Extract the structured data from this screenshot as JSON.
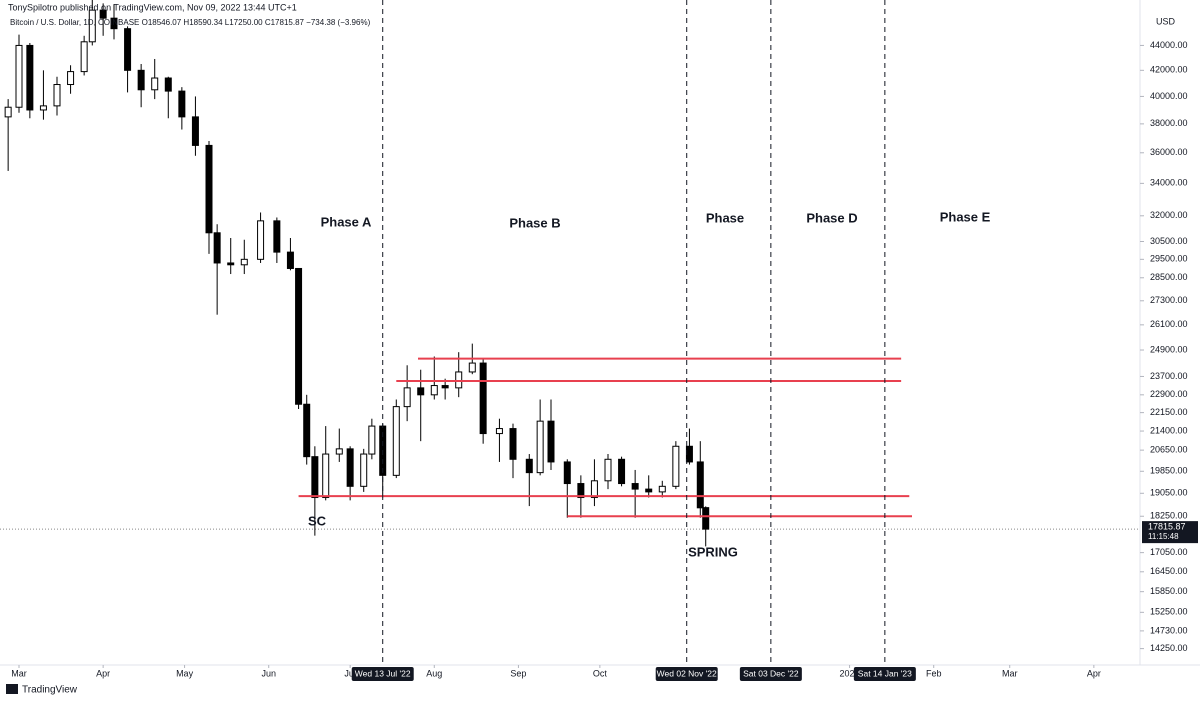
{
  "header": {
    "byline": "TonySpilotro published on TradingView.com, Nov 09, 2022 13:44 UTC+1",
    "legend": "Bitcoin / U.S. Dollar, 1D, COINBASE  O18546.07  H18590.34  L17250.00  C17815.87  −734.38 (−3.96%)",
    "brand": "TradingView"
  },
  "chart_data": {
    "type": "candlestick",
    "currency": "USD",
    "log_scale": true,
    "up_color": "#ffffff",
    "down_color": "#000000",
    "outline_color": "#000000",
    "x": [
      "2022-02-25",
      "2022-03-01",
      "2022-03-05",
      "2022-03-10",
      "2022-03-15",
      "2022-03-20",
      "2022-03-25",
      "2022-03-28",
      "2022-04-01",
      "2022-04-05",
      "2022-04-10",
      "2022-04-15",
      "2022-04-20",
      "2022-04-25",
      "2022-04-30",
      "2022-05-05",
      "2022-05-10",
      "2022-05-13",
      "2022-05-18",
      "2022-05-23",
      "2022-05-29",
      "2022-06-04",
      "2022-06-09",
      "2022-06-12",
      "2022-06-15",
      "2022-06-18",
      "2022-06-22",
      "2022-06-27",
      "2022-07-01",
      "2022-07-06",
      "2022-07-09",
      "2022-07-13",
      "2022-07-18",
      "2022-07-22",
      "2022-07-27",
      "2022-08-01",
      "2022-08-05",
      "2022-08-10",
      "2022-08-15",
      "2022-08-19",
      "2022-08-25",
      "2022-08-30",
      "2022-09-05",
      "2022-09-09",
      "2022-09-13",
      "2022-09-19",
      "2022-09-24",
      "2022-09-29",
      "2022-10-04",
      "2022-10-09",
      "2022-10-14",
      "2022-10-19",
      "2022-10-24",
      "2022-10-29",
      "2022-11-03",
      "2022-11-07",
      "2022-11-09"
    ],
    "open": [
      38500,
      39200,
      44000,
      39000,
      39300,
      40900,
      41900,
      44300,
      47000,
      46300,
      45400,
      42000,
      40500,
      41400,
      40400,
      38500,
      36500,
      31000,
      29300,
      29200,
      29500,
      31700,
      29900,
      29000,
      22500,
      20400,
      18900,
      20500,
      20700,
      19300,
      20500,
      21600,
      19700,
      22400,
      23200,
      22900,
      23300,
      23200,
      23900,
      24300,
      21300,
      21500,
      20300,
      19800,
      21800,
      20200,
      19400,
      18900,
      19500,
      20300,
      19400,
      19200,
      19100,
      19300,
      20800,
      20200,
      18546.07
    ],
    "high": [
      39800,
      44900,
      44200,
      42000,
      41500,
      42400,
      44800,
      48200,
      47600,
      47500,
      45600,
      42500,
      42900,
      41500,
      40700,
      40000,
      36800,
      31500,
      30700,
      30600,
      32200,
      31900,
      30700,
      29000,
      22900,
      20800,
      21600,
      21500,
      20800,
      20700,
      21900,
      21700,
      22700,
      24200,
      24000,
      24600,
      23600,
      24800,
      25200,
      24500,
      21900,
      21700,
      20500,
      22700,
      22700,
      20300,
      19700,
      20300,
      20500,
      20400,
      19900,
      19700,
      19500,
      21000,
      21500,
      21000,
      18590.34
    ],
    "low": [
      34800,
      38800,
      38400,
      38300,
      38600,
      40200,
      41600,
      44000,
      44800,
      44500,
      40300,
      39200,
      39800,
      38400,
      37600,
      35800,
      29800,
      26600,
      28700,
      28700,
      29300,
      29300,
      28900,
      22300,
      20100,
      17600,
      18800,
      20200,
      18800,
      19100,
      20300,
      18900,
      19600,
      21800,
      21000,
      22700,
      22700,
      22800,
      23800,
      20900,
      20200,
      19600,
      18600,
      19700,
      19900,
      18200,
      18200,
      18600,
      19200,
      19300,
      18200,
      18900,
      18900,
      19200,
      20100,
      18200,
      17250
    ],
    "close": [
      39200,
      44000,
      39000,
      39300,
      40900,
      41900,
      44300,
      47000,
      46300,
      45400,
      42000,
      40500,
      41400,
      40400,
      38500,
      36500,
      31000,
      29300,
      29200,
      29500,
      31700,
      29900,
      29000,
      22500,
      20400,
      18900,
      20500,
      20700,
      19300,
      20500,
      21600,
      19700,
      22400,
      23200,
      22900,
      23300,
      23200,
      23900,
      24300,
      21300,
      21500,
      20300,
      19800,
      21800,
      20200,
      19400,
      18900,
      19500,
      20300,
      19400,
      19200,
      19100,
      19300,
      20800,
      20200,
      18540,
      17815.87
    ],
    "last_label": "17815.87",
    "countdown": "11:15:48",
    "xlim": [
      "2022-02-22",
      "2023-04-18"
    ],
    "xticks": [
      {
        "value": "2022-03-01",
        "label": "Mar"
      },
      {
        "value": "2022-04-01",
        "label": "Apr"
      },
      {
        "value": "2022-05-01",
        "label": "May"
      },
      {
        "value": "2022-06-01",
        "label": "Jun"
      },
      {
        "value": "2022-07-01",
        "label": "Jul"
      },
      {
        "value": "2022-08-01",
        "label": "Aug"
      },
      {
        "value": "2022-09-01",
        "label": "Sep"
      },
      {
        "value": "2022-10-01",
        "label": "Oct"
      },
      {
        "value": "2023-01-01",
        "label": "2023"
      },
      {
        "value": "2023-02-01",
        "label": "Feb"
      },
      {
        "value": "2023-03-01",
        "label": "Mar"
      },
      {
        "value": "2023-04-01",
        "label": "Apr"
      }
    ],
    "ylim": [
      13820,
      47900
    ],
    "yticks": [
      {
        "value": 44000,
        "label": "44000.00"
      },
      {
        "value": 42000,
        "label": "42000.00"
      },
      {
        "value": 40000,
        "label": "40000.00"
      },
      {
        "value": 38000,
        "label": "38000.00"
      },
      {
        "value": 36000,
        "label": "36000.00"
      },
      {
        "value": 34000,
        "label": "34000.00"
      },
      {
        "value": 32000,
        "label": "32000.00"
      },
      {
        "value": 30500,
        "label": "30500.00"
      },
      {
        "value": 29500,
        "label": "29500.00"
      },
      {
        "value": 28500,
        "label": "28500.00"
      },
      {
        "value": 27300,
        "label": "27300.00"
      },
      {
        "value": 26100,
        "label": "26100.00"
      },
      {
        "value": 24900,
        "label": "24900.00"
      },
      {
        "value": 23700,
        "label": "23700.00"
      },
      {
        "value": 22900,
        "label": "22900.00"
      },
      {
        "value": 22150,
        "label": "22150.00"
      },
      {
        "value": 21400,
        "label": "21400.00"
      },
      {
        "value": 20650,
        "label": "20650.00"
      },
      {
        "value": 19850,
        "label": "19850.00"
      },
      {
        "value": 19050,
        "label": "19050.00"
      },
      {
        "value": 18250,
        "label": "18250.00"
      },
      {
        "value": 17050,
        "label": "17050.00"
      },
      {
        "value": 16450,
        "label": "16450.00"
      },
      {
        "value": 15850,
        "label": "15850.00"
      },
      {
        "value": 15250,
        "label": "15250.00"
      },
      {
        "value": 14730,
        "label": "14730.00"
      },
      {
        "value": 14250,
        "label": "14250.00"
      }
    ],
    "markers": [
      {
        "value": "2022-07-13",
        "label": "Wed 13 Jul '22"
      },
      {
        "value": "2022-11-02",
        "label": "Wed 02 Nov '22"
      },
      {
        "value": "2022-12-03",
        "label": "Sat 03 Dec '22"
      },
      {
        "value": "2023-01-14",
        "label": "Sat 14 Jan '23"
      }
    ],
    "level_color": "#e8404f",
    "levels": [
      {
        "value": 24500,
        "from": "2022-07-26",
        "to": "2023-01-20"
      },
      {
        "value": 23500,
        "from": "2022-07-18",
        "to": "2023-01-20"
      },
      {
        "value": 18950,
        "from": "2022-06-12",
        "to": "2023-01-23"
      },
      {
        "value": 18250,
        "from": "2022-09-19",
        "to": "2023-01-24"
      }
    ],
    "annotations": [
      "Phase A",
      "Phase B",
      "Phase",
      "Phase D",
      "Phase E",
      "SC",
      "SPRING"
    ]
  }
}
